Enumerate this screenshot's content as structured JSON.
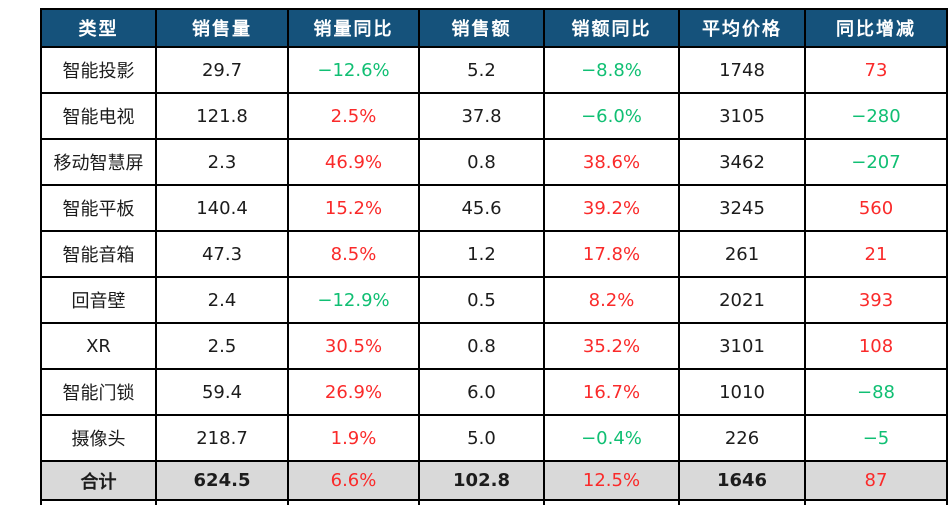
{
  "colors": {
    "header_bg": "#15527B",
    "header_text": "#FFFFFF",
    "increase_text": "#FA2A2A",
    "decrease_text": "#10BF73",
    "total_row_bg": "#D9D9D9",
    "border": "#000000"
  },
  "table": {
    "headers": [
      {
        "key": "type",
        "label": "类型"
      },
      {
        "key": "sales-volume",
        "label": "销售量"
      },
      {
        "key": "volume-yoy",
        "label": "销量同比"
      },
      {
        "key": "sales-amount",
        "label": "销售额"
      },
      {
        "key": "amount-yoy",
        "label": "销额同比"
      },
      {
        "key": "avg-price",
        "label": "平均价格"
      },
      {
        "key": "yoy-change",
        "label": "同比增减"
      }
    ],
    "rows": [
      {
        "cells": [
          {
            "t": "智能投影"
          },
          {
            "t": "29.7"
          },
          {
            "t": "−12.6%",
            "c": "neg"
          },
          {
            "t": "5.2"
          },
          {
            "t": "−8.8%",
            "c": "neg"
          },
          {
            "t": "1748"
          },
          {
            "t": "73",
            "c": "pos"
          }
        ]
      },
      {
        "cells": [
          {
            "t": "智能电视"
          },
          {
            "t": "121.8"
          },
          {
            "t": "2.5%",
            "c": "pos"
          },
          {
            "t": "37.8"
          },
          {
            "t": "−6.0%",
            "c": "neg"
          },
          {
            "t": "3105"
          },
          {
            "t": "−280",
            "c": "neg"
          }
        ]
      },
      {
        "cells": [
          {
            "t": "移动智慧屏"
          },
          {
            "t": "2.3"
          },
          {
            "t": "46.9%",
            "c": "pos"
          },
          {
            "t": "0.8"
          },
          {
            "t": "38.6%",
            "c": "pos"
          },
          {
            "t": "3462"
          },
          {
            "t": "−207",
            "c": "neg"
          }
        ]
      },
      {
        "cells": [
          {
            "t": "智能平板"
          },
          {
            "t": "140.4"
          },
          {
            "t": "15.2%",
            "c": "pos"
          },
          {
            "t": "45.6"
          },
          {
            "t": "39.2%",
            "c": "pos"
          },
          {
            "t": "3245"
          },
          {
            "t": "560",
            "c": "pos"
          }
        ]
      },
      {
        "cells": [
          {
            "t": "智能音箱"
          },
          {
            "t": "47.3"
          },
          {
            "t": "8.5%",
            "c": "pos"
          },
          {
            "t": "1.2"
          },
          {
            "t": "17.8%",
            "c": "pos"
          },
          {
            "t": "261"
          },
          {
            "t": "21",
            "c": "pos"
          }
        ]
      },
      {
        "cells": [
          {
            "t": "回音壁"
          },
          {
            "t": "2.4"
          },
          {
            "t": "−12.9%",
            "c": "neg"
          },
          {
            "t": "0.5"
          },
          {
            "t": "8.2%",
            "c": "pos"
          },
          {
            "t": "2021"
          },
          {
            "t": "393",
            "c": "pos"
          }
        ]
      },
      {
        "cells": [
          {
            "t": "XR"
          },
          {
            "t": "2.5"
          },
          {
            "t": "30.5%",
            "c": "pos"
          },
          {
            "t": "0.8"
          },
          {
            "t": "35.2%",
            "c": "pos"
          },
          {
            "t": "3101"
          },
          {
            "t": "108",
            "c": "pos"
          }
        ]
      },
      {
        "cells": [
          {
            "t": "智能门锁"
          },
          {
            "t": "59.4"
          },
          {
            "t": "26.9%",
            "c": "pos"
          },
          {
            "t": "6.0"
          },
          {
            "t": "16.7%",
            "c": "pos"
          },
          {
            "t": "1010"
          },
          {
            "t": "−88",
            "c": "neg"
          }
        ]
      },
      {
        "cells": [
          {
            "t": "摄像头"
          },
          {
            "t": "218.7"
          },
          {
            "t": "1.9%",
            "c": "pos"
          },
          {
            "t": "5.0"
          },
          {
            "t": "−0.4%",
            "c": "neg"
          },
          {
            "t": "226"
          },
          {
            "t": "−5",
            "c": "neg"
          }
        ]
      },
      {
        "total": true,
        "cells": [
          {
            "t": "合计",
            "b": true
          },
          {
            "t": "624.5",
            "b": true
          },
          {
            "t": "6.6%",
            "c": "pos"
          },
          {
            "t": "102.8",
            "b": true
          },
          {
            "t": "12.5%",
            "c": "pos"
          },
          {
            "t": "1646",
            "b": true
          },
          {
            "t": "87",
            "c": "pos"
          }
        ]
      }
    ]
  },
  "chart_data": {
    "type": "table",
    "title": "",
    "columns": [
      "类型",
      "销售量",
      "销量同比",
      "销售额",
      "销额同比",
      "平均价格",
      "同比增减"
    ],
    "rows": [
      [
        "智能投影",
        29.7,
        "-12.6%",
        5.2,
        "-8.8%",
        1748,
        73
      ],
      [
        "智能电视",
        121.8,
        "2.5%",
        37.8,
        "-6.0%",
        3105,
        -280
      ],
      [
        "移动智慧屏",
        2.3,
        "46.9%",
        0.8,
        "38.6%",
        3462,
        -207
      ],
      [
        "智能平板",
        140.4,
        "15.2%",
        45.6,
        "39.2%",
        3245,
        560
      ],
      [
        "智能音箱",
        47.3,
        "8.5%",
        1.2,
        "17.8%",
        261,
        21
      ],
      [
        "回音壁",
        2.4,
        "-12.9%",
        0.5,
        "8.2%",
        2021,
        393
      ],
      [
        "XR",
        2.5,
        "30.5%",
        0.8,
        "35.2%",
        3101,
        108
      ],
      [
        "智能门锁",
        59.4,
        "26.9%",
        6.0,
        "16.7%",
        1010,
        -88
      ],
      [
        "摄像头",
        218.7,
        "1.9%",
        5.0,
        "-0.4%",
        226,
        -5
      ],
      [
        "合计",
        624.5,
        "6.6%",
        102.8,
        "12.5%",
        1646,
        87
      ]
    ],
    "layout_hints": {
      "header_style": "dark-blue background, white bold text",
      "total_row_style": "gray background, bold black values",
      "value_color_coding": "red = positive/increase, green = negative/decrease",
      "grid": "black borders on all cells"
    }
  }
}
